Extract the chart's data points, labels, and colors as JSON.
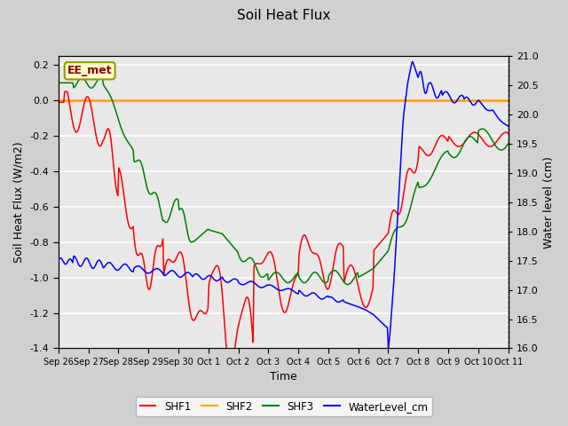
{
  "title": "Soil Heat Flux",
  "xlabel": "Time",
  "ylabel_left": "Soil Heat Flux (W/m2)",
  "ylabel_right": "Water level (cm)",
  "ylim_left": [
    -1.4,
    0.25
  ],
  "ylim_right": [
    16.0,
    21.0
  ],
  "fig_facecolor": "#d0d0d0",
  "plot_bg_color": "#e8e8e8",
  "annotation_text": "EE_met",
  "annotation_box_facecolor": "#ffffcc",
  "annotation_box_edgecolor": "#999900",
  "annotation_text_color": "#880000",
  "grid_color": "#ffffff",
  "legend_labels": [
    "SHF1",
    "SHF2",
    "SHF3",
    "WaterLevel_cm"
  ],
  "line_colors": [
    "red",
    "orange",
    "green",
    "blue"
  ],
  "x_tick_labels": [
    "Sep 26",
    "Sep 27",
    "Sep 28",
    "Sep 29",
    "Sep 30",
    "Oct 1",
    "Oct 2",
    "Oct 3",
    "Oct 4",
    "Oct 5",
    "Oct 6",
    "Oct 7",
    "Oct 8",
    "Oct 9",
    "Oct 10",
    "Oct 11"
  ],
  "yticks_left": [
    -1.4,
    -1.2,
    -1.0,
    -0.8,
    -0.6,
    -0.4,
    -0.2,
    0.0,
    0.2
  ],
  "yticks_right": [
    16.0,
    16.5,
    17.0,
    17.5,
    18.0,
    18.5,
    19.0,
    19.5,
    20.0,
    20.5,
    21.0
  ]
}
